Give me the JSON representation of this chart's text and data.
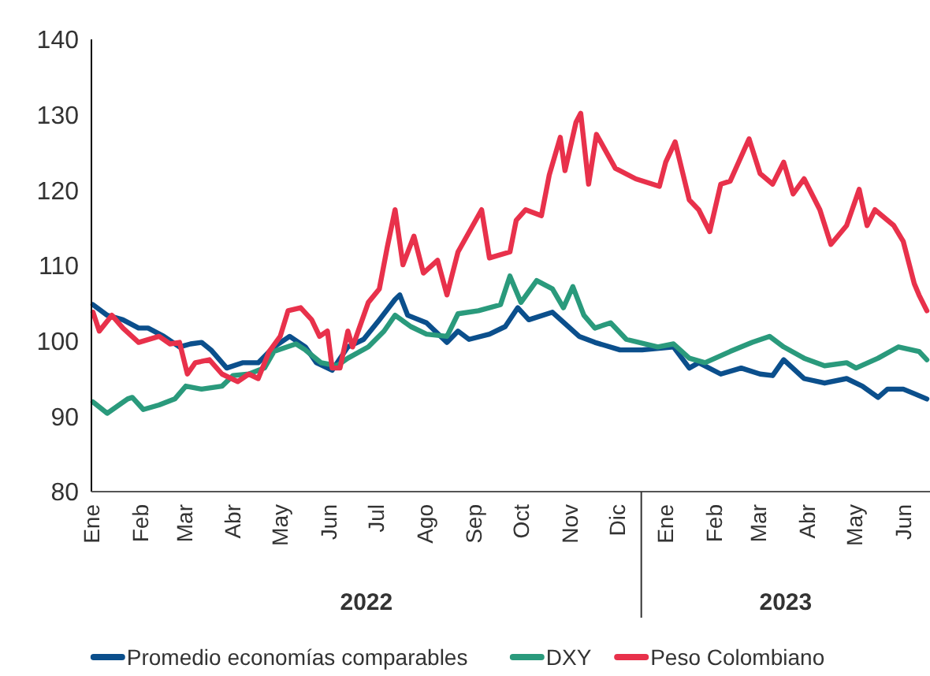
{
  "chart_data": {
    "type": "line",
    "xlim": [
      "2022-01-01",
      "2023-06-18"
    ],
    "ylim": [
      80,
      140
    ],
    "yticks": [
      80,
      90,
      100,
      110,
      120,
      130,
      140
    ],
    "xticks": [
      {
        "value": "2022-01-01",
        "label": "Ene"
      },
      {
        "value": "2022-02-01",
        "label": "Feb"
      },
      {
        "value": "2022-03-01",
        "label": "Mar"
      },
      {
        "value": "2022-04-01",
        "label": "Abr"
      },
      {
        "value": "2022-05-01",
        "label": "May"
      },
      {
        "value": "2022-06-01",
        "label": "Jun"
      },
      {
        "value": "2022-07-01",
        "label": "Jul"
      },
      {
        "value": "2022-08-01",
        "label": "Ago"
      },
      {
        "value": "2022-09-01",
        "label": "Sep"
      },
      {
        "value": "2022-10-01",
        "label": "Oct"
      },
      {
        "value": "2022-11-01",
        "label": "Nov"
      },
      {
        "value": "2022-12-01",
        "label": "Dic"
      },
      {
        "value": "2023-01-01",
        "label": "Ene"
      },
      {
        "value": "2023-02-01",
        "label": "Feb"
      },
      {
        "value": "2023-03-01",
        "label": "Mar"
      },
      {
        "value": "2023-04-01",
        "label": "Abr"
      },
      {
        "value": "2023-05-01",
        "label": "May"
      },
      {
        "value": "2023-06-01",
        "label": "Jun"
      }
    ],
    "annotations": [
      "2022",
      "2023"
    ],
    "legend": "bottom",
    "grid": false,
    "marker": "none",
    "line_style": "solid",
    "series": [
      {
        "name": "Promedio economías comparables",
        "color": "#0b4f8c",
        "x": [
          "2022-01-02",
          "2022-01-11",
          "2022-01-21",
          "2022-01-31",
          "2022-02-06",
          "2022-02-16",
          "2022-02-26",
          "2022-03-05",
          "2022-03-12",
          "2022-03-18",
          "2022-03-28",
          "2022-04-07",
          "2022-04-17",
          "2022-04-27",
          "2022-05-07",
          "2022-05-17",
          "2022-05-24",
          "2022-06-03",
          "2022-06-13",
          "2022-06-23",
          "2022-07-03",
          "2022-07-13",
          "2022-07-16",
          "2022-07-21",
          "2022-08-02",
          "2022-08-15",
          "2022-08-22",
          "2022-08-29",
          "2022-09-11",
          "2022-09-21",
          "2022-09-29",
          "2022-10-06",
          "2022-10-21",
          "2022-11-07",
          "2022-11-17",
          "2022-12-03",
          "2022-12-17",
          "2023-01-06",
          "2023-01-16",
          "2023-01-22",
          "2023-02-05",
          "2023-02-18",
          "2023-03-02",
          "2023-03-10",
          "2023-03-17",
          "2023-03-30",
          "2023-04-12",
          "2023-04-26",
          "2023-05-06",
          "2023-05-16",
          "2023-05-22",
          "2023-06-01",
          "2023-06-08",
          "2023-06-16"
        ],
        "values": [
          104.8,
          103.4,
          102.8,
          101.7,
          101.7,
          100.6,
          99.2,
          99.6,
          99.8,
          98.8,
          96.4,
          97.1,
          97.1,
          99.2,
          100.6,
          99.2,
          97.1,
          96.1,
          99.2,
          100.2,
          102.8,
          105.5,
          106.1,
          103.4,
          102.4,
          99.8,
          101.3,
          100.2,
          100.9,
          101.9,
          104.4,
          102.8,
          103.8,
          100.6,
          99.8,
          98.8,
          98.8,
          99.2,
          96.4,
          97.1,
          95.6,
          96.4,
          95.6,
          95.4,
          97.5,
          95,
          94.4,
          95,
          94,
          92.5,
          93.6,
          93.6,
          93,
          92.3
        ]
      },
      {
        "name": "DXY",
        "color": "#2a9a7c",
        "x": [
          "2022-01-02",
          "2022-01-11",
          "2022-01-24",
          "2022-01-27",
          "2022-02-03",
          "2022-02-13",
          "2022-02-23",
          "2022-03-02",
          "2022-03-12",
          "2022-03-25",
          "2022-04-01",
          "2022-04-11",
          "2022-04-21",
          "2022-04-27",
          "2022-05-11",
          "2022-05-17",
          "2022-05-27",
          "2022-06-06",
          "2022-06-13",
          "2022-06-26",
          "2022-07-06",
          "2022-07-13",
          "2022-07-23",
          "2022-08-02",
          "2022-08-15",
          "2022-08-22",
          "2022-09-04",
          "2022-09-18",
          "2022-09-24",
          "2022-10-01",
          "2022-10-11",
          "2022-10-21",
          "2022-10-28",
          "2022-11-03",
          "2022-11-10",
          "2022-11-17",
          "2022-11-27",
          "2022-12-07",
          "2022-12-27",
          "2023-01-06",
          "2023-01-16",
          "2023-01-26",
          "2023-02-11",
          "2023-02-25",
          "2023-03-08",
          "2023-03-17",
          "2023-03-30",
          "2023-04-12",
          "2023-04-26",
          "2023-05-02",
          "2023-05-16",
          "2023-05-29",
          "2023-06-11",
          "2023-06-16"
        ],
        "values": [
          91.9,
          90.4,
          92.3,
          92.5,
          90.9,
          91.5,
          92.3,
          94,
          93.6,
          94,
          95.4,
          95.6,
          96.4,
          98.6,
          99.6,
          98.8,
          97.1,
          96.7,
          97.7,
          99.2,
          101.3,
          103.4,
          101.9,
          100.9,
          100.6,
          103.6,
          104,
          104.8,
          108.6,
          105.1,
          108,
          106.9,
          104.4,
          107.2,
          103.4,
          101.7,
          102.4,
          100.2,
          99.2,
          99.6,
          97.7,
          97.1,
          98.6,
          99.8,
          100.6,
          99.2,
          97.7,
          96.7,
          97.1,
          96.4,
          97.7,
          99.2,
          98.6,
          97.5
        ]
      },
      {
        "name": "Peso Colombiano",
        "color": "#e8314b",
        "x": [
          "2022-01-02",
          "2022-01-06",
          "2022-01-14",
          "2022-01-21",
          "2022-01-31",
          "2022-02-13",
          "2022-02-20",
          "2022-02-26",
          "2022-03-03",
          "2022-03-08",
          "2022-03-17",
          "2022-03-25",
          "2022-04-04",
          "2022-04-11",
          "2022-04-17",
          "2022-04-24",
          "2022-05-01",
          "2022-05-06",
          "2022-05-14",
          "2022-05-21",
          "2022-05-26",
          "2022-05-31",
          "2022-06-03",
          "2022-06-08",
          "2022-06-13",
          "2022-06-16",
          "2022-06-26",
          "2022-07-03",
          "2022-07-08",
          "2022-07-13",
          "2022-07-18",
          "2022-07-25",
          "2022-07-31",
          "2022-08-09",
          "2022-08-15",
          "2022-08-22",
          "2022-09-06",
          "2022-09-11",
          "2022-09-24",
          "2022-09-28",
          "2022-10-04",
          "2022-10-14",
          "2022-10-19",
          "2022-10-26",
          "2022-10-29",
          "2022-11-05",
          "2022-11-08",
          "2022-11-13",
          "2022-11-18",
          "2022-11-30",
          "2022-12-13",
          "2022-12-28",
          "2023-01-01",
          "2023-01-07",
          "2023-01-16",
          "2023-01-22",
          "2023-01-29",
          "2023-02-05",
          "2023-02-11",
          "2023-02-23",
          "2023-03-02",
          "2023-03-10",
          "2023-03-17",
          "2023-03-23",
          "2023-03-30",
          "2023-04-09",
          "2023-04-16",
          "2023-04-26",
          "2023-05-04",
          "2023-05-09",
          "2023-05-14",
          "2023-05-26",
          "2023-06-01",
          "2023-06-08",
          "2023-06-11",
          "2023-06-16"
        ],
        "values": [
          103.8,
          101.3,
          103.4,
          101.7,
          99.8,
          100.6,
          99.6,
          99.8,
          95.6,
          97.1,
          97.5,
          95.6,
          94.6,
          95.6,
          95,
          98.6,
          100.6,
          104,
          104.4,
          102.8,
          100.6,
          101.3,
          96.4,
          96.4,
          101.3,
          99.2,
          105.1,
          106.9,
          112.4,
          117.4,
          110.1,
          113.9,
          109,
          110.7,
          106.1,
          111.8,
          117.4,
          111,
          111.8,
          116,
          117.4,
          116.6,
          122,
          127,
          122.6,
          129,
          130.2,
          120.8,
          127.4,
          122.9,
          121.5,
          120.5,
          123.7,
          126.4,
          118.7,
          117.4,
          114.5,
          120.8,
          121.2,
          126.8,
          122.2,
          120.8,
          123.7,
          119.5,
          121.5,
          117.4,
          112.8,
          115.3,
          120.1,
          115.3,
          117.4,
          115.3,
          113.2,
          107.6,
          106.1,
          104
        ]
      }
    ]
  }
}
